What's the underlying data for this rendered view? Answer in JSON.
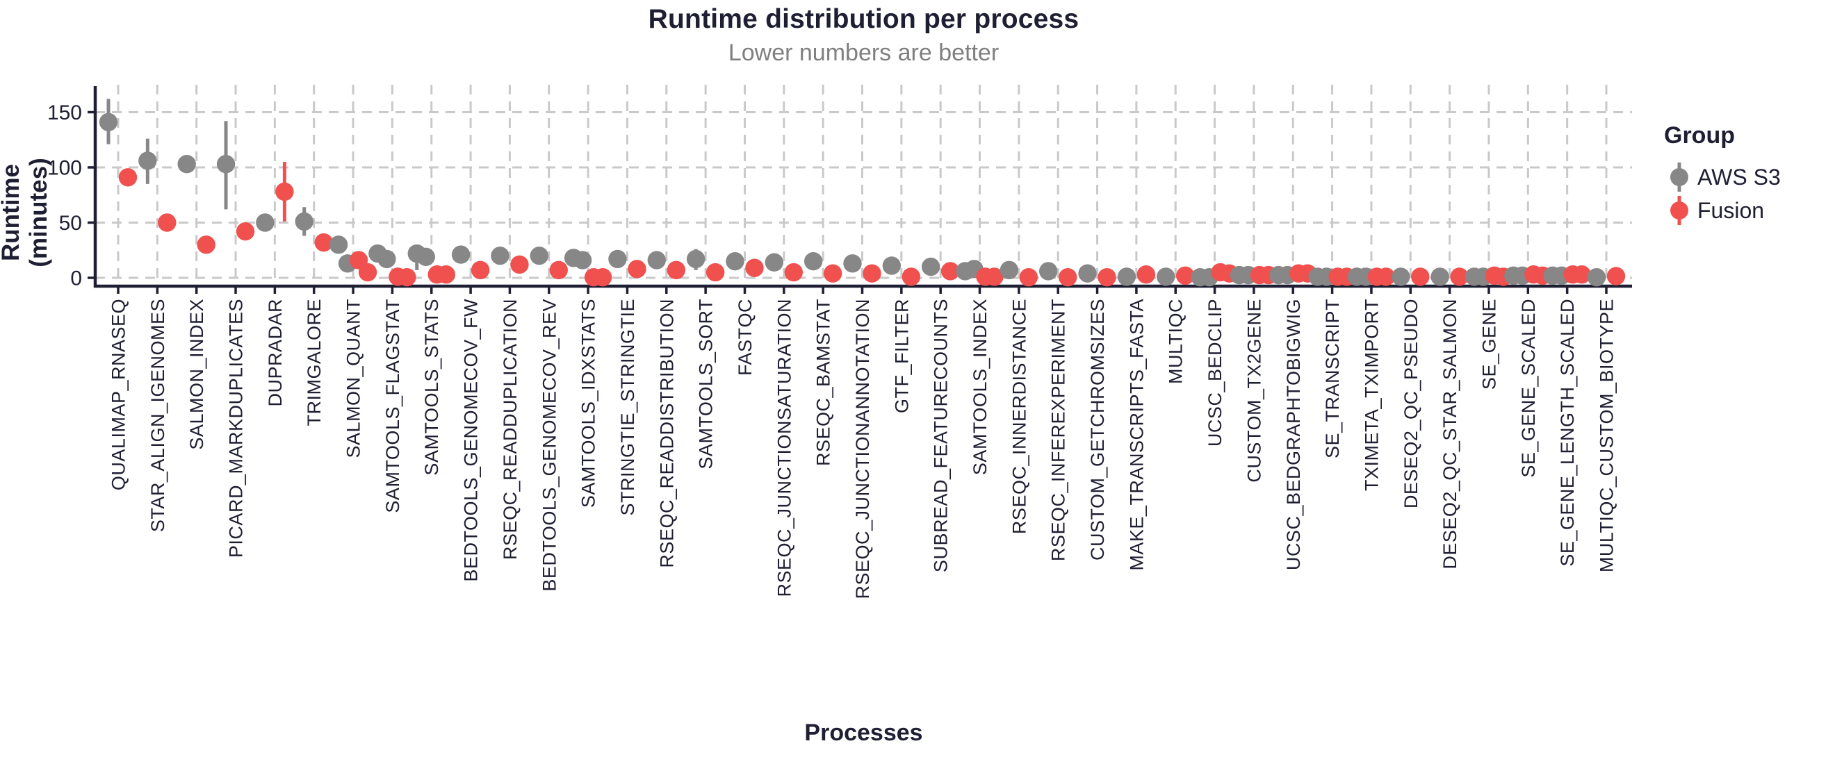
{
  "header": {
    "title": "Runtime distribution per process",
    "subtitle": "Lower numbers are better"
  },
  "axes": {
    "y_label": "Runtime (minutes)",
    "x_label": "Processes",
    "y_ticks": [
      0,
      50,
      100,
      150
    ]
  },
  "legend": {
    "title": "Group",
    "entries": [
      "AWS S3",
      "Fusion"
    ]
  },
  "colors": {
    "aws": "#878787",
    "fusion": "#f0504e",
    "text": "#1f1f33",
    "subtitle_gray": "#7f7f7f",
    "grid": "#c9c9c9",
    "axis": "#1f1f33"
  },
  "chart_data": {
    "type": "scatter",
    "style": "dodged points with range bars (pointrange)",
    "title": "Runtime distribution per process",
    "subtitle": "Lower numbers are better",
    "xlabel": "Processes",
    "ylabel": "Runtime (minutes)",
    "ylim": [
      -8,
      175
    ],
    "yticks": [
      0,
      50,
      100,
      150
    ],
    "grid": "dashed-major-both",
    "legend_position": "right",
    "legend_title": "Group",
    "groups": [
      {
        "name": "AWS S3",
        "color": "#878787"
      },
      {
        "name": "Fusion",
        "color": "#f0504e"
      }
    ],
    "processes": [
      {
        "name": "QUALIMAP_RNASEQ",
        "aws": {
          "points": [
            141
          ],
          "range": [
            121,
            162
          ]
        },
        "fusion": {
          "points": [
            91
          ],
          "range": [
            83,
            98
          ]
        }
      },
      {
        "name": "STAR_ALIGN_IGENOMES",
        "aws": {
          "points": [
            106
          ],
          "range": [
            85,
            126
          ]
        },
        "fusion": {
          "points": [
            50
          ]
        }
      },
      {
        "name": "SALMON_INDEX",
        "aws": {
          "points": [
            103
          ]
        },
        "fusion": {
          "points": [
            30
          ]
        }
      },
      {
        "name": "PICARD_MARKDUPLICATES",
        "aws": {
          "points": [
            103
          ],
          "range": [
            62,
            142
          ]
        },
        "fusion": {
          "points": [
            42
          ]
        }
      },
      {
        "name": "DUPRADAR",
        "aws": {
          "points": [
            50
          ],
          "range": [
            43,
            58
          ]
        },
        "fusion": {
          "points": [
            78
          ],
          "range": [
            51,
            105
          ]
        }
      },
      {
        "name": "TRIMGALORE",
        "aws": {
          "points": [
            51
          ],
          "range": [
            38,
            64
          ]
        },
        "fusion": {
          "points": [
            32
          ]
        }
      },
      {
        "name": "SALMON_QUANT",
        "aws": {
          "points": [
            30,
            13
          ]
        },
        "fusion": {
          "points": [
            16,
            5
          ]
        }
      },
      {
        "name": "SAMTOOLS_FLAGSTAT",
        "aws": {
          "points": [
            22,
            17
          ]
        },
        "fusion": {
          "points": [
            1,
            0.5
          ]
        }
      },
      {
        "name": "SAMTOOLS_STATS",
        "aws": {
          "points": [
            22,
            19
          ],
          "range": [
            7,
            26
          ]
        },
        "fusion": {
          "points": [
            3,
            3
          ]
        }
      },
      {
        "name": "BEDTOOLS_GENOMECOV_FW",
        "aws": {
          "points": [
            21
          ]
        },
        "fusion": {
          "points": [
            7
          ]
        }
      },
      {
        "name": "RSEQC_READDUPLICATION",
        "aws": {
          "points": [
            20
          ]
        },
        "fusion": {
          "points": [
            12
          ]
        }
      },
      {
        "name": "BEDTOOLS_GENOMECOV_REV",
        "aws": {
          "points": [
            20
          ]
        },
        "fusion": {
          "points": [
            7
          ]
        }
      },
      {
        "name": "SAMTOOLS_IDXSTATS",
        "aws": {
          "points": [
            18,
            16
          ]
        },
        "fusion": {
          "points": [
            0.5,
            0.5
          ]
        }
      },
      {
        "name": "STRINGTIE_STRINGTIE",
        "aws": {
          "points": [
            17
          ]
        },
        "fusion": {
          "points": [
            8
          ]
        }
      },
      {
        "name": "RSEQC_READDISTRIBUTION",
        "aws": {
          "points": [
            16
          ]
        },
        "fusion": {
          "points": [
            7
          ]
        }
      },
      {
        "name": "SAMTOOLS_SORT",
        "aws": {
          "points": [
            17
          ],
          "range": [
            7,
            26
          ]
        },
        "fusion": {
          "points": [
            5
          ]
        }
      },
      {
        "name": "FASTQC",
        "aws": {
          "points": [
            15
          ]
        },
        "fusion": {
          "points": [
            9
          ]
        }
      },
      {
        "name": "RSEQC_JUNCTIONSATURATION",
        "aws": {
          "points": [
            14
          ]
        },
        "fusion": {
          "points": [
            5
          ]
        }
      },
      {
        "name": "RSEQC_BAMSTAT",
        "aws": {
          "points": [
            15
          ]
        },
        "fusion": {
          "points": [
            4
          ]
        }
      },
      {
        "name": "RSEQC_JUNCTIONANNOTATION",
        "aws": {
          "points": [
            13
          ]
        },
        "fusion": {
          "points": [
            4
          ]
        }
      },
      {
        "name": "GTF_FILTER",
        "aws": {
          "points": [
            11
          ]
        },
        "fusion": {
          "points": [
            1
          ]
        }
      },
      {
        "name": "SUBREAD_FEATURECOUNTS",
        "aws": {
          "points": [
            10
          ]
        },
        "fusion": {
          "points": [
            6
          ]
        }
      },
      {
        "name": "SAMTOOLS_INDEX",
        "aws": {
          "points": [
            6,
            8
          ]
        },
        "fusion": {
          "points": [
            1,
            1
          ]
        }
      },
      {
        "name": "RSEQC_INNERDISTANCE",
        "aws": {
          "points": [
            7
          ]
        },
        "fusion": {
          "points": [
            0.5
          ]
        }
      },
      {
        "name": "RSEQC_INFEREXPERIMENT",
        "aws": {
          "points": [
            6
          ]
        },
        "fusion": {
          "points": [
            0.5
          ]
        }
      },
      {
        "name": "CUSTOM_GETCHROMSIZES",
        "aws": {
          "points": [
            4
          ]
        },
        "fusion": {
          "points": [
            0.5
          ]
        }
      },
      {
        "name": "MAKE_TRANSCRIPTS_FASTA",
        "aws": {
          "points": [
            1
          ]
        },
        "fusion": {
          "points": [
            3
          ]
        }
      },
      {
        "name": "MULTIQC",
        "aws": {
          "points": [
            1
          ]
        },
        "fusion": {
          "points": [
            2
          ]
        }
      },
      {
        "name": "UCSC_BEDCLIP",
        "aws": {
          "points": [
            0.5,
            0.5
          ]
        },
        "fusion": {
          "points": [
            5,
            4
          ]
        }
      },
      {
        "name": "CUSTOM_TX2GENE",
        "aws": {
          "points": [
            2.5,
            2.5
          ]
        },
        "fusion": {
          "points": [
            2.5,
            2.5
          ]
        }
      },
      {
        "name": "UCSC_BEDGRAPHTOBIGWIG",
        "aws": {
          "points": [
            2.5,
            2.5
          ]
        },
        "fusion": {
          "points": [
            4,
            4
          ]
        }
      },
      {
        "name": "SE_TRANSCRIPT",
        "aws": {
          "points": [
            1,
            1
          ]
        },
        "fusion": {
          "points": [
            1,
            1
          ]
        }
      },
      {
        "name": "TXIMETA_TXIMPORT",
        "aws": {
          "points": [
            1,
            1
          ]
        },
        "fusion": {
          "points": [
            1,
            1
          ]
        }
      },
      {
        "name": "DESEQ2_QC_PSEUDO",
        "aws": {
          "points": [
            1
          ]
        },
        "fusion": {
          "points": [
            1
          ]
        }
      },
      {
        "name": "DESEQ2_QC_STAR_SALMON",
        "aws": {
          "points": [
            1
          ]
        },
        "fusion": {
          "points": [
            1
          ]
        }
      },
      {
        "name": "SE_GENE",
        "aws": {
          "points": [
            1,
            1
          ]
        },
        "fusion": {
          "points": [
            2,
            1
          ]
        }
      },
      {
        "name": "SE_GENE_SCALED",
        "aws": {
          "points": [
            2,
            2
          ]
        },
        "fusion": {
          "points": [
            3,
            2
          ]
        }
      },
      {
        "name": "SE_GENE_LENGTH_SCALED",
        "aws": {
          "points": [
            2,
            2
          ]
        },
        "fusion": {
          "points": [
            3,
            3
          ]
        }
      },
      {
        "name": "MULTIQC_CUSTOM_BIOTYPE",
        "aws": {
          "points": [
            0.5
          ]
        },
        "fusion": {
          "points": [
            1.5
          ]
        }
      }
    ]
  }
}
